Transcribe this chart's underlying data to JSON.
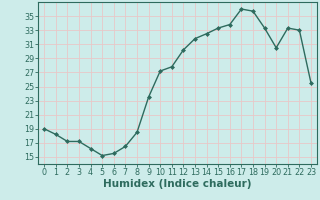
{
  "x": [
    0,
    1,
    2,
    3,
    4,
    5,
    6,
    7,
    8,
    9,
    10,
    11,
    12,
    13,
    14,
    15,
    16,
    17,
    18,
    19,
    20,
    21,
    22,
    23
  ],
  "y": [
    19,
    18.2,
    17.2,
    17.2,
    16.2,
    15.2,
    15.5,
    16.5,
    18.5,
    23.5,
    27.2,
    27.8,
    30.2,
    31.8,
    32.5,
    33.3,
    33.8,
    36.0,
    35.7,
    33.3,
    30.5,
    33.3,
    33.0,
    25.5
  ],
  "xlabel": "Humidex (Indice chaleur)",
  "ylim": [
    14,
    37
  ],
  "xlim": [
    -0.5,
    23.5
  ],
  "yticks": [
    15,
    17,
    19,
    21,
    23,
    25,
    27,
    29,
    31,
    33,
    35
  ],
  "xticks": [
    0,
    1,
    2,
    3,
    4,
    5,
    6,
    7,
    8,
    9,
    10,
    11,
    12,
    13,
    14,
    15,
    16,
    17,
    18,
    19,
    20,
    21,
    22,
    23
  ],
  "line_color": "#2e6b5e",
  "marker_color": "#2e6b5e",
  "bg_color": "#cdecea",
  "grid_color": "#e8c8c8",
  "axis_color": "#2e6b5e",
  "tick_label_fontsize": 5.8,
  "xlabel_fontsize": 7.5,
  "marker": "D",
  "marker_size": 2.0,
  "line_width": 1.0
}
